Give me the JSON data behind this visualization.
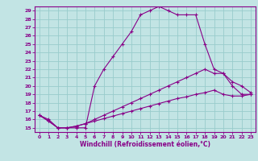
{
  "xlabel": "Windchill (Refroidissement éolien,°C)",
  "xlim": [
    -0.5,
    23.5
  ],
  "ylim": [
    14.5,
    29.5
  ],
  "yticks": [
    15,
    16,
    17,
    18,
    19,
    20,
    21,
    22,
    23,
    24,
    25,
    26,
    27,
    28,
    29
  ],
  "xticks": [
    0,
    1,
    2,
    3,
    4,
    5,
    6,
    7,
    8,
    9,
    10,
    11,
    12,
    13,
    14,
    15,
    16,
    17,
    18,
    19,
    20,
    21,
    22,
    23
  ],
  "bg_color": "#c2e4e4",
  "line_color": "#880088",
  "grid_color": "#99cccc",
  "line1_x": [
    0,
    1,
    2,
    3,
    4,
    5,
    6,
    7,
    8,
    9,
    10,
    11,
    12,
    13,
    14,
    15,
    16,
    17,
    18,
    19,
    20,
    21,
    22,
    23
  ],
  "line1_y": [
    16.5,
    16.0,
    15.0,
    15.0,
    15.0,
    15.0,
    20.0,
    22.0,
    23.5,
    25.0,
    26.5,
    28.5,
    29.0,
    29.5,
    29.0,
    28.5,
    28.5,
    28.5,
    25.0,
    22.0,
    21.5,
    20.0,
    19.0,
    19.0
  ],
  "line2_x": [
    0,
    1,
    2,
    3,
    4,
    5,
    6,
    7,
    8,
    9,
    10,
    11,
    12,
    13,
    14,
    15,
    16,
    17,
    18,
    19,
    20,
    21,
    22,
    23
  ],
  "line2_y": [
    16.5,
    15.8,
    15.0,
    15.0,
    15.2,
    15.5,
    16.0,
    16.5,
    17.0,
    17.5,
    18.0,
    18.5,
    19.0,
    19.5,
    20.0,
    20.5,
    21.0,
    21.5,
    22.0,
    21.5,
    21.5,
    20.5,
    20.0,
    19.2
  ],
  "line3_x": [
    0,
    1,
    2,
    3,
    4,
    5,
    6,
    7,
    8,
    9,
    10,
    11,
    12,
    13,
    14,
    15,
    16,
    17,
    18,
    19,
    20,
    21,
    22,
    23
  ],
  "line3_y": [
    16.5,
    15.8,
    15.0,
    15.0,
    15.2,
    15.5,
    15.8,
    16.1,
    16.4,
    16.7,
    17.0,
    17.3,
    17.6,
    17.9,
    18.2,
    18.5,
    18.7,
    19.0,
    19.2,
    19.5,
    19.0,
    18.8,
    18.8,
    19.0
  ]
}
